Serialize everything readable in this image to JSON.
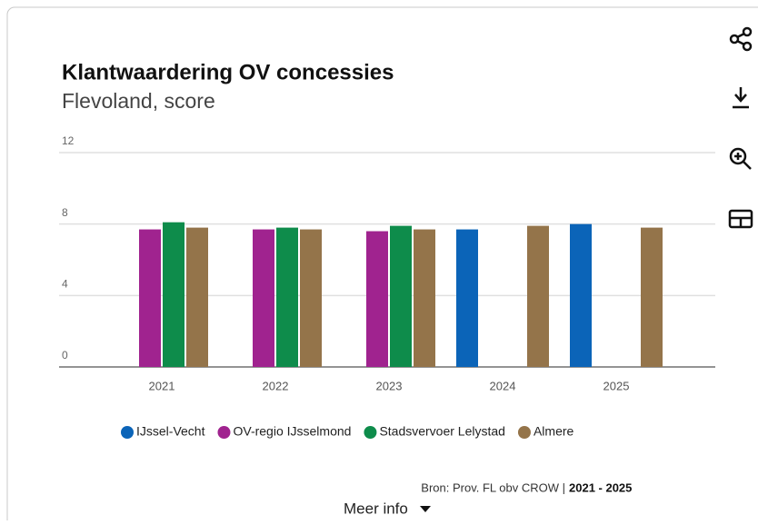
{
  "chart_data": {
    "type": "bar",
    "title": "Klantwaardering OV concessies",
    "subtitle": "Flevoland, score",
    "categories": [
      "2021",
      "2022",
      "2023",
      "2024",
      "2025"
    ],
    "series": [
      {
        "name": "IJssel-Vecht",
        "color": "#0b64b8",
        "values": [
          null,
          null,
          null,
          7.7,
          8.0
        ]
      },
      {
        "name": "OV-regio IJsselmond",
        "color": "#a0238f",
        "values": [
          7.7,
          7.7,
          7.6,
          null,
          null
        ]
      },
      {
        "name": "Stadsvervoer Lelystad",
        "color": "#0e8c4b",
        "values": [
          8.1,
          7.8,
          7.9,
          null,
          null
        ]
      },
      {
        "name": "Almere",
        "color": "#94744a",
        "values": [
          7.8,
          7.7,
          7.7,
          7.9,
          7.8
        ]
      }
    ],
    "ylim": [
      0,
      12
    ],
    "yticks": [
      0,
      4,
      8,
      12
    ],
    "grid": true,
    "source": "Bron: Prov. FL obv CROW |",
    "period": "2021 - 2025",
    "more_info": "Meer info"
  }
}
